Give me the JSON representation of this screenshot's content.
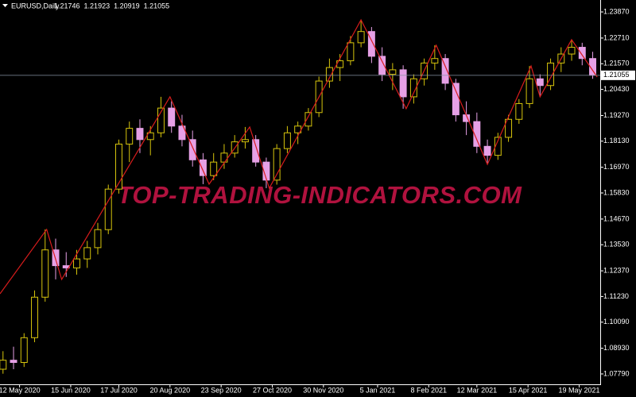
{
  "chart_data": {
    "type": "candlestick",
    "symbol": "EURUSD,Daily",
    "header_ohlc": [
      1.21746,
      1.21923,
      1.20919,
      1.21055
    ],
    "watermark": "TOP-TRADING-INDICATORS.COM",
    "up_color": "#d6c40c",
    "down_color": "#e6a0e6",
    "price_line_color": "#8894a4",
    "x": [
      "1 May 2020",
      "8 May 2020",
      "15 May 2020",
      "22 May 2020",
      "29 May 2020",
      "5 Jun 2020",
      "12 Jun 2020",
      "19 Jun 2020",
      "26 Jun 2020",
      "3 Jul 2020",
      "10 Jul 2020",
      "17 Jul 2020",
      "24 Jul 2020",
      "31 Jul 2020",
      "7 Aug 2020",
      "14 Aug 2020",
      "21 Aug 2020",
      "28 Aug 2020",
      "4 Sep 2020",
      "11 Sep 2020",
      "18 Sep 2020",
      "25 Sep 2020",
      "2 Oct 2020",
      "9 Oct 2020",
      "16 Oct 2020",
      "23 Oct 2020",
      "30 Oct 2020",
      "6 Nov 2020",
      "13 Nov 2020",
      "20 Nov 2020",
      "27 Nov 2020",
      "4 Dec 2020",
      "11 Dec 2020",
      "18 Dec 2020",
      "25 Dec 2020",
      "1 Jan 2021",
      "8 Jan 2021",
      "15 Jan 2021",
      "22 Jan 2021",
      "29 Jan 2021",
      "5 Feb 2021",
      "12 Feb 2021",
      "19 Feb 2021",
      "26 Feb 2021",
      "5 Mar 2021",
      "12 Mar 2021",
      "19 Mar 2021",
      "26 Mar 2021",
      "2 Apr 2021",
      "9 Apr 2021",
      "16 Apr 2021",
      "23 Apr 2021",
      "30 Apr 2021",
      "7 May 2021",
      "14 May 2021",
      "21 May 2021",
      "28 May 2021"
    ],
    "open": [
      1.08,
      1.084,
      1.083,
      1.094,
      1.112,
      1.133,
      1.126,
      1.125,
      1.129,
      1.134,
      1.142,
      1.16,
      1.18,
      1.187,
      1.182,
      1.185,
      1.196,
      1.188,
      1.182,
      1.173,
      1.166,
      1.172,
      1.176,
      1.181,
      1.182,
      1.172,
      1.164,
      1.178,
      1.185,
      1.188,
      1.194,
      1.208,
      1.214,
      1.217,
      1.225,
      1.23,
      1.219,
      1.211,
      1.213,
      1.201,
      1.209,
      1.216,
      1.218,
      1.207,
      1.193,
      1.19,
      1.179,
      1.175,
      1.183,
      1.191,
      1.198,
      1.209,
      1.206,
      1.216,
      1.22,
      1.223,
      1.218
    ],
    "high": [
      1.088,
      1.09,
      1.096,
      1.115,
      1.1421,
      1.138,
      1.132,
      1.133,
      1.137,
      1.145,
      1.162,
      1.182,
      1.19,
      1.191,
      1.188,
      1.201,
      1.199,
      1.193,
      1.186,
      1.176,
      1.176,
      1.18,
      1.184,
      1.1876,
      1.184,
      1.174,
      1.18,
      1.188,
      1.19,
      1.196,
      1.21,
      1.218,
      1.22,
      1.228,
      1.2352,
      1.232,
      1.223,
      1.216,
      1.215,
      1.211,
      1.218,
      1.2239,
      1.22,
      1.209,
      1.199,
      1.194,
      1.182,
      1.185,
      1.193,
      1.2,
      1.2147,
      1.211,
      1.218,
      1.223,
      1.2264,
      1.225,
      1.221
    ],
    "low": [
      1.078,
      1.08,
      1.081,
      1.092,
      1.11,
      1.1199,
      1.121,
      1.122,
      1.125,
      1.131,
      1.14,
      1.158,
      1.172,
      1.176,
      1.175,
      1.183,
      1.185,
      1.179,
      1.17,
      1.1622,
      1.164,
      1.169,
      1.174,
      1.178,
      1.17,
      1.1604,
      1.162,
      1.176,
      1.18,
      1.186,
      1.192,
      1.205,
      1.208,
      1.215,
      1.223,
      1.216,
      1.208,
      1.204,
      1.1957,
      1.198,
      1.206,
      1.213,
      1.204,
      1.19,
      1.184,
      1.176,
      1.171,
      1.173,
      1.181,
      1.189,
      1.196,
      1.201,
      1.204,
      1.212,
      1.217,
      1.215,
      1.209
    ],
    "close": [
      1.084,
      1.083,
      1.094,
      1.112,
      1.133,
      1.126,
      1.125,
      1.129,
      1.134,
      1.142,
      1.16,
      1.18,
      1.187,
      1.182,
      1.185,
      1.196,
      1.188,
      1.182,
      1.173,
      1.166,
      1.172,
      1.176,
      1.181,
      1.182,
      1.172,
      1.164,
      1.178,
      1.185,
      1.188,
      1.194,
      1.208,
      1.214,
      1.217,
      1.225,
      1.23,
      1.219,
      1.211,
      1.213,
      1.201,
      1.209,
      1.216,
      1.218,
      1.207,
      1.193,
      1.19,
      1.179,
      1.175,
      1.183,
      1.191,
      1.198,
      1.209,
      1.206,
      1.216,
      1.22,
      1.223,
      1.218,
      1.2106
    ],
    "zigzag": {
      "color": "#d81c1c",
      "x": [
        "29 Apr 2020",
        "30 May 2020",
        "9 Jun 2020",
        "20 Aug 2020",
        "15 Sep 2020",
        "12 Oct 2020",
        "25 Oct 2020",
        "25 Dec 2020",
        "24 Jan 2021",
        "13 Feb 2021",
        "19 Mar 2021",
        "17 Apr 2021",
        "23 Apr 2021",
        "14 May 2021",
        "31 May 2021"
      ],
      "values": [
        1.1135,
        1.1421,
        1.1199,
        1.201,
        1.1622,
        1.1876,
        1.1604,
        1.2352,
        1.1957,
        1.2239,
        1.171,
        1.2147,
        1.201,
        1.2264,
        1.2098
      ]
    },
    "xlim": [
      "29 Apr 2020",
      "2 Jun 2021"
    ],
    "ylim": [
      1.0733,
      1.244
    ],
    "xticks": [
      "12 May 2020",
      "15 Jun 2020",
      "17 Jul 2020",
      "20 Aug 2020",
      "23 Sep 2020",
      "27 Oct 2020",
      "30 Nov 2020",
      "5 Jan 2021",
      "8 Feb 2021",
      "12 Mar 2021",
      "15 Apr 2021",
      "19 May 2021"
    ],
    "yticks": [
      {
        "value": 1.0779,
        "label": "1.07790"
      },
      {
        "value": 1.0893,
        "label": "1.08930"
      },
      {
        "value": 1.1009,
        "label": "1.10090"
      },
      {
        "value": 1.1123,
        "label": "1.11230"
      },
      {
        "value": 1.1237,
        "label": "1.12370"
      },
      {
        "value": 1.1353,
        "label": "1.13530"
      },
      {
        "value": 1.1467,
        "label": "1.14670"
      },
      {
        "value": 1.1583,
        "label": "1.15830"
      },
      {
        "value": 1.1697,
        "label": "1.16970"
      },
      {
        "value": 1.1813,
        "label": "1.18130"
      },
      {
        "value": 1.1927,
        "label": "1.19270"
      },
      {
        "value": 1.2043,
        "label": "1.20430"
      },
      {
        "value": 1.2157,
        "label": "1.21570"
      },
      {
        "value": 1.2271,
        "label": "1.22710"
      },
      {
        "value": 1.2387,
        "label": "1.23870"
      }
    ]
  }
}
